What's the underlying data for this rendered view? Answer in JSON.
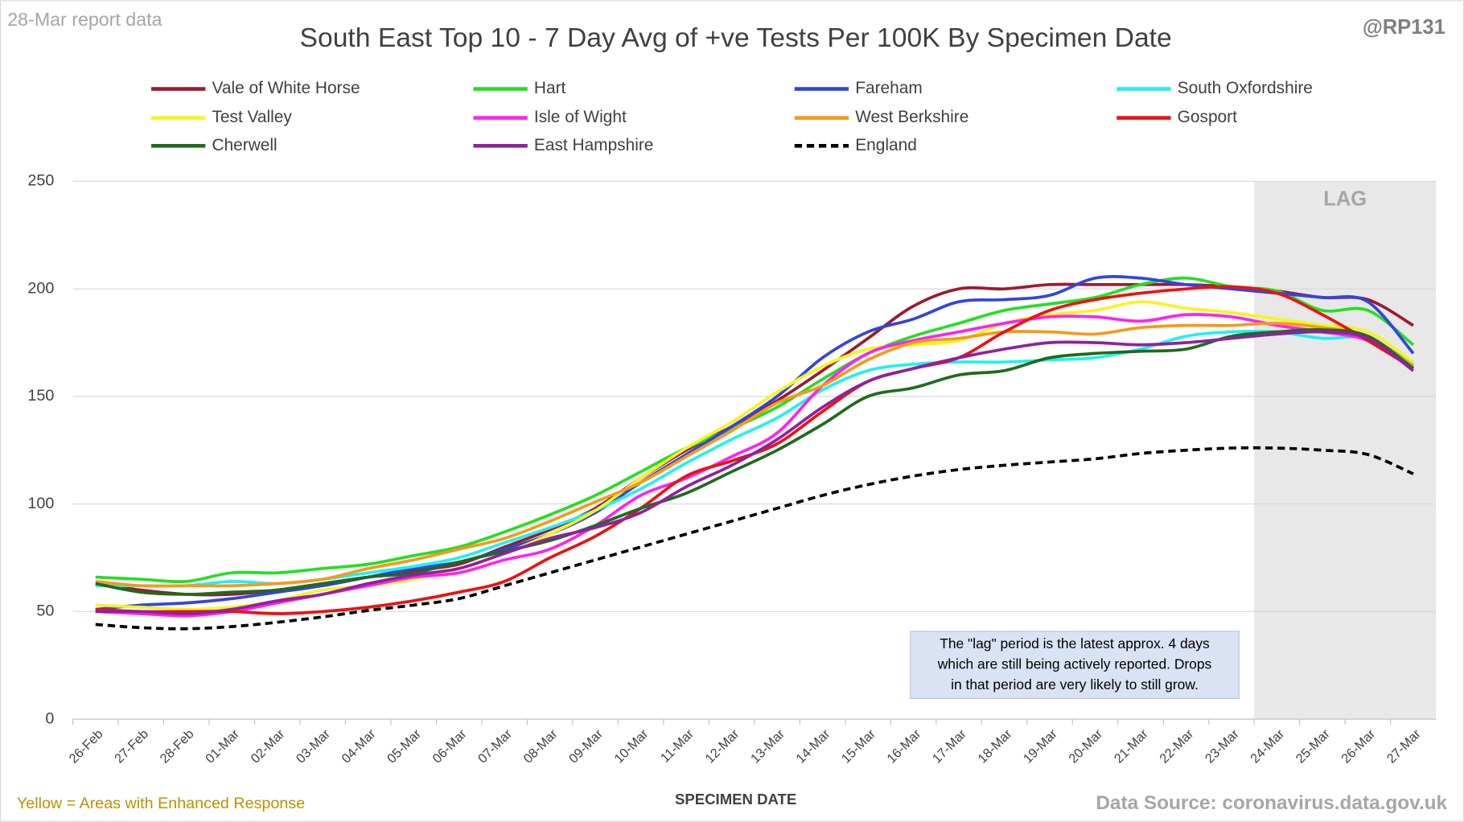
{
  "chart_data": {
    "type": "line",
    "title": "South East Top 10 - 7 Day Avg of +ve Tests Per 100K By Specimen Date",
    "report_label": "28-Mar report data",
    "handle": "@RP131",
    "x_label": "SPECIMEN DATE",
    "lag_label": "LAG",
    "annotation": [
      "The \"lag\" period is the latest approx. 4 days",
      "which are still being actively reported.  Drops",
      "in that period are very likely to still grow."
    ],
    "footnote": "Yellow = Areas with Enhanced Response",
    "source": "Data Source: coronavirus.data.gov.uk",
    "categories": [
      "26-Feb",
      "27-Feb",
      "28-Feb",
      "01-Mar",
      "02-Mar",
      "03-Mar",
      "04-Mar",
      "05-Mar",
      "06-Mar",
      "07-Mar",
      "08-Mar",
      "09-Mar",
      "10-Mar",
      "11-Mar",
      "12-Mar",
      "13-Mar",
      "14-Mar",
      "15-Mar",
      "16-Mar",
      "17-Mar",
      "18-Mar",
      "19-Mar",
      "20-Mar",
      "21-Mar",
      "22-Mar",
      "23-Mar",
      "24-Mar",
      "25-Mar",
      "26-Mar",
      "27-Mar"
    ],
    "ylim": [
      0,
      250
    ],
    "yticks": [
      0,
      50,
      100,
      150,
      200,
      250
    ],
    "grid": true,
    "series": [
      {
        "name": "Vale of White Horse",
        "color": "#9b1b30",
        "values": [
          63,
          60,
          58,
          58,
          60,
          63,
          66,
          69,
          72,
          80,
          88,
          98,
          112,
          125,
          136,
          148,
          162,
          177,
          192,
          200,
          200,
          202,
          202,
          202,
          202,
          201,
          199,
          196,
          195,
          183
        ]
      },
      {
        "name": "Hart",
        "color": "#22e022",
        "values": [
          66,
          65,
          64,
          68,
          68,
          70,
          72,
          76,
          80,
          87,
          95,
          104,
          115,
          126,
          135,
          145,
          158,
          170,
          178,
          184,
          190,
          193,
          196,
          202,
          205,
          201,
          199,
          190,
          190,
          174
        ]
      },
      {
        "name": "Fareham",
        "color": "#3344e0",
        "values": [
          51,
          53,
          54,
          56,
          59,
          62,
          66,
          70,
          73,
          79,
          86,
          96,
          110,
          123,
          136,
          150,
          168,
          180,
          186,
          194,
          195,
          197,
          205,
          205,
          202,
          200,
          198,
          196,
          194,
          170
        ]
      },
      {
        "name": "South Oxfordshire",
        "color": "#22f0f0",
        "values": [
          62,
          62,
          62,
          64,
          63,
          65,
          68,
          71,
          75,
          82,
          89,
          97,
          107,
          119,
          130,
          140,
          153,
          162,
          165,
          166,
          166,
          167,
          168,
          172,
          178,
          180,
          180,
          177,
          177,
          165
        ]
      },
      {
        "name": "Test Valley",
        "color": "#f5f520",
        "values": [
          53,
          52,
          51,
          52,
          55,
          60,
          62,
          65,
          70,
          77,
          86,
          97,
          112,
          126,
          138,
          152,
          164,
          172,
          174,
          176,
          184,
          188,
          190,
          194,
          191,
          189,
          186,
          183,
          180,
          166
        ]
      },
      {
        "name": "Isle of Wight",
        "color": "#ff22ee",
        "values": [
          50,
          49,
          48,
          50,
          54,
          58,
          62,
          66,
          68,
          74,
          79,
          90,
          104,
          112,
          122,
          133,
          155,
          170,
          176,
          180,
          184,
          187,
          187,
          185,
          188,
          187,
          183,
          180,
          176,
          164
        ]
      },
      {
        "name": "West Berkshire",
        "color": "#f59a1b",
        "values": [
          64,
          62,
          62,
          62,
          63,
          65,
          70,
          74,
          79,
          84,
          92,
          101,
          110,
          122,
          134,
          147,
          155,
          167,
          175,
          177,
          180,
          180,
          179,
          182,
          183,
          183,
          184,
          182,
          178,
          164
        ]
      },
      {
        "name": "Gosport",
        "color": "#ee1111",
        "values": [
          51,
          50,
          50,
          50,
          49,
          50,
          52,
          55,
          59,
          64,
          75,
          85,
          98,
          113,
          120,
          128,
          143,
          157,
          163,
          168,
          180,
          190,
          195,
          198,
          200,
          201,
          198,
          188,
          176,
          163
        ]
      },
      {
        "name": "Cherwell",
        "color": "#1e6b1e",
        "values": [
          63,
          59,
          58,
          59,
          60,
          63,
          66,
          68,
          73,
          78,
          83,
          90,
          98,
          105,
          115,
          125,
          137,
          150,
          154,
          160,
          162,
          168,
          170,
          171,
          172,
          178,
          180,
          181,
          178,
          163
        ]
      },
      {
        "name": "East Hampshire",
        "color": "#9020a0",
        "values": [
          50,
          50,
          49,
          51,
          55,
          58,
          63,
          67,
          70,
          77,
          84,
          89,
          96,
          108,
          118,
          130,
          145,
          157,
          163,
          168,
          172,
          175,
          175,
          174,
          175,
          177,
          179,
          180,
          177,
          162
        ]
      },
      {
        "name": "England",
        "color": "#000000",
        "dashed": true,
        "values": [
          44,
          42.5,
          42,
          43,
          45,
          47.5,
          50.5,
          53,
          56,
          62,
          68,
          74,
          80,
          86,
          92,
          98,
          104,
          109,
          113,
          116,
          118,
          119.5,
          121,
          123.5,
          125,
          126,
          126,
          125,
          123,
          114
        ]
      }
    ]
  }
}
